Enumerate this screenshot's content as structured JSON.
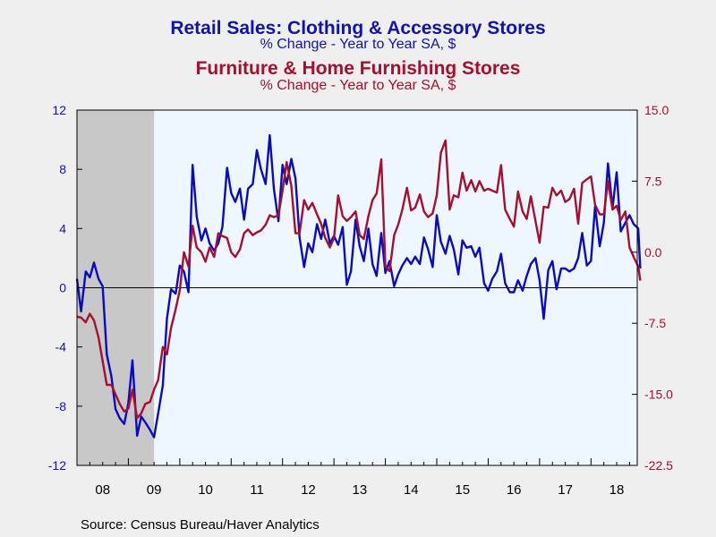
{
  "chart_data": {
    "type": "line",
    "title": "Retail Sales: Clothing & Accessory Stores",
    "subtitle": "% Change - Year to Year    SA, $",
    "title2": "Furniture & Home Furnishing Stores",
    "subtitle2": "% Change - Year to Year    SA, $",
    "source": "Source:  Census Bureau/Haver Analytics",
    "x_range": [
      2008.0,
      2018.9
    ],
    "x_tick_labels": [
      "08",
      "09",
      "10",
      "11",
      "12",
      "13",
      "14",
      "15",
      "16",
      "17",
      "18"
    ],
    "recession_shading": [
      2008.0,
      2009.5
    ],
    "left_axis": {
      "range": [
        -12,
        12
      ],
      "ticks": [
        "12",
        "8",
        "4",
        "0",
        "-4",
        "-8",
        "-12"
      ],
      "color": "#1212b4"
    },
    "right_axis": {
      "range": [
        -22.5,
        15.0
      ],
      "ticks": [
        "15.0",
        "7.5",
        "0.0",
        "-7.5",
        "-15.0",
        "-22.5"
      ],
      "color": "#a6102e"
    },
    "grid": false,
    "series": [
      {
        "name": "Retail Sales: Clothing & Accessory Stores",
        "axis": "left",
        "color": "#0a0ac0",
        "points": [
          [
            2008.0,
            0.6
          ],
          [
            2008.08,
            -1.6
          ],
          [
            2008.17,
            1.1
          ],
          [
            2008.25,
            0.7
          ],
          [
            2008.33,
            1.7
          ],
          [
            2008.42,
            0.6
          ],
          [
            2008.5,
            0.1
          ],
          [
            2008.58,
            -4.5
          ],
          [
            2008.67,
            -6.0
          ],
          [
            2008.75,
            -8.2
          ],
          [
            2008.83,
            -8.8
          ],
          [
            2008.92,
            -9.2
          ],
          [
            2009.0,
            -7.8
          ],
          [
            2009.08,
            -4.9
          ],
          [
            2009.17,
            -10.0
          ],
          [
            2009.25,
            -8.7
          ],
          [
            2009.33,
            -9.1
          ],
          [
            2009.42,
            -9.6
          ],
          [
            2009.5,
            -10.1
          ],
          [
            2009.58,
            -8.5
          ],
          [
            2009.67,
            -6.6
          ],
          [
            2009.75,
            -2.1
          ],
          [
            2009.83,
            -0.1
          ],
          [
            2009.92,
            -0.4
          ],
          [
            2010.0,
            1.5
          ],
          [
            2010.08,
            1.1
          ],
          [
            2010.17,
            -0.3
          ],
          [
            2010.25,
            8.3
          ],
          [
            2010.33,
            4.8
          ],
          [
            2010.42,
            3.2
          ],
          [
            2010.5,
            4.0
          ],
          [
            2010.58,
            3.0
          ],
          [
            2010.67,
            2.5
          ],
          [
            2010.75,
            3.0
          ],
          [
            2010.83,
            4.1
          ],
          [
            2010.92,
            8.1
          ],
          [
            2011.0,
            6.4
          ],
          [
            2011.08,
            5.8
          ],
          [
            2011.17,
            6.7
          ],
          [
            2011.25,
            4.6
          ],
          [
            2011.33,
            6.7
          ],
          [
            2011.42,
            7.0
          ],
          [
            2011.5,
            9.3
          ],
          [
            2011.58,
            8.0
          ],
          [
            2011.67,
            7.0
          ],
          [
            2011.75,
            10.3
          ],
          [
            2011.83,
            6.7
          ],
          [
            2011.92,
            4.5
          ],
          [
            2012.0,
            8.3
          ],
          [
            2012.08,
            7.0
          ],
          [
            2012.17,
            8.7
          ],
          [
            2012.25,
            7.4
          ],
          [
            2012.33,
            3.4
          ],
          [
            2012.42,
            1.4
          ],
          [
            2012.5,
            3.0
          ],
          [
            2012.58,
            2.4
          ],
          [
            2012.67,
            4.3
          ],
          [
            2012.75,
            3.3
          ],
          [
            2012.83,
            4.6
          ],
          [
            2012.92,
            3.0
          ],
          [
            2013.0,
            3.5
          ],
          [
            2013.08,
            2.9
          ],
          [
            2013.17,
            4.1
          ],
          [
            2013.25,
            0.2
          ],
          [
            2013.33,
            1.1
          ],
          [
            2013.42,
            4.6
          ],
          [
            2013.5,
            2.8
          ],
          [
            2013.58,
            1.8
          ],
          [
            2013.67,
            4.0
          ],
          [
            2013.75,
            1.6
          ],
          [
            2013.83,
            0.8
          ],
          [
            2013.92,
            3.7
          ],
          [
            2014.0,
            1.0
          ],
          [
            2014.08,
            1.8
          ],
          [
            2014.17,
            0.1
          ],
          [
            2014.25,
            0.9
          ],
          [
            2014.33,
            1.5
          ],
          [
            2014.42,
            2.0
          ],
          [
            2014.5,
            1.6
          ],
          [
            2014.58,
            2.1
          ],
          [
            2014.67,
            1.6
          ],
          [
            2014.75,
            3.4
          ],
          [
            2014.83,
            2.6
          ],
          [
            2014.92,
            1.4
          ],
          [
            2015.0,
            4.9
          ],
          [
            2015.08,
            3.1
          ],
          [
            2015.17,
            2.3
          ],
          [
            2015.25,
            3.5
          ],
          [
            2015.33,
            2.6
          ],
          [
            2015.42,
            0.9
          ],
          [
            2015.5,
            3.2
          ],
          [
            2015.58,
            2.7
          ],
          [
            2015.67,
            2.8
          ],
          [
            2015.75,
            2.1
          ],
          [
            2015.83,
            2.7
          ],
          [
            2015.92,
            0.3
          ],
          [
            2016.0,
            -0.2
          ],
          [
            2016.08,
            0.6
          ],
          [
            2016.17,
            1.1
          ],
          [
            2016.25,
            2.3
          ],
          [
            2016.33,
            0.3
          ],
          [
            2016.42,
            -0.3
          ],
          [
            2016.5,
            -0.3
          ],
          [
            2016.58,
            0.5
          ],
          [
            2016.67,
            -0.2
          ],
          [
            2016.75,
            0.8
          ],
          [
            2016.83,
            1.6
          ],
          [
            2016.92,
            2.0
          ],
          [
            2017.0,
            0.5
          ],
          [
            2017.08,
            -2.1
          ],
          [
            2017.17,
            1.2
          ],
          [
            2017.25,
            1.8
          ],
          [
            2017.33,
            -0.1
          ],
          [
            2017.42,
            1.3
          ],
          [
            2017.5,
            1.3
          ],
          [
            2017.58,
            1.1
          ],
          [
            2017.67,
            1.3
          ],
          [
            2017.75,
            2.0
          ],
          [
            2017.83,
            3.7
          ],
          [
            2017.92,
            1.5
          ],
          [
            2018.0,
            1.8
          ],
          [
            2018.08,
            5.5
          ],
          [
            2018.17,
            2.8
          ],
          [
            2018.25,
            4.4
          ],
          [
            2018.33,
            8.4
          ],
          [
            2018.42,
            5.4
          ],
          [
            2018.5,
            7.8
          ],
          [
            2018.58,
            3.8
          ],
          [
            2018.67,
            4.4
          ],
          [
            2018.75,
            4.9
          ],
          [
            2018.83,
            4.3
          ],
          [
            2018.92,
            4.0
          ],
          [
            2018.96,
            1.3
          ]
        ]
      },
      {
        "name": "Furniture & Home Furnishing Stores",
        "axis": "right",
        "color": "#a6102e",
        "points": [
          [
            2008.0,
            -6.8
          ],
          [
            2008.08,
            -6.9
          ],
          [
            2008.17,
            -7.4
          ],
          [
            2008.25,
            -6.5
          ],
          [
            2008.33,
            -7.2
          ],
          [
            2008.42,
            -9.0
          ],
          [
            2008.5,
            -11.5
          ],
          [
            2008.58,
            -14.0
          ],
          [
            2008.67,
            -14.0
          ],
          [
            2008.75,
            -15.0
          ],
          [
            2008.83,
            -16.0
          ],
          [
            2008.92,
            -16.8
          ],
          [
            2009.0,
            -16.5
          ],
          [
            2009.08,
            -14.5
          ],
          [
            2009.17,
            -17.5
          ],
          [
            2009.25,
            -17.0
          ],
          [
            2009.33,
            -16.0
          ],
          [
            2009.42,
            -15.8
          ],
          [
            2009.5,
            -14.5
          ],
          [
            2009.58,
            -13.5
          ],
          [
            2009.67,
            -10.0
          ],
          [
            2009.75,
            -10.8
          ],
          [
            2009.83,
            -8.0
          ],
          [
            2009.92,
            -6.0
          ],
          [
            2010.0,
            -4.0
          ],
          [
            2010.08,
            0.0
          ],
          [
            2010.17,
            -1.5
          ],
          [
            2010.25,
            2.8
          ],
          [
            2010.33,
            0.5
          ],
          [
            2010.42,
            0.0
          ],
          [
            2010.5,
            -1.0
          ],
          [
            2010.58,
            0.5
          ],
          [
            2010.67,
            -0.5
          ],
          [
            2010.75,
            2.0
          ],
          [
            2010.83,
            1.7
          ],
          [
            2010.92,
            1.5
          ],
          [
            2011.0,
            0.0
          ],
          [
            2011.08,
            -0.5
          ],
          [
            2011.17,
            0.3
          ],
          [
            2011.25,
            2.0
          ],
          [
            2011.33,
            2.4
          ],
          [
            2011.42,
            1.8
          ],
          [
            2011.5,
            2.1
          ],
          [
            2011.58,
            2.3
          ],
          [
            2011.67,
            2.9
          ],
          [
            2011.75,
            3.9
          ],
          [
            2011.83,
            3.7
          ],
          [
            2011.92,
            3.9
          ],
          [
            2012.0,
            6.5
          ],
          [
            2012.08,
            9.5
          ],
          [
            2012.17,
            7.0
          ],
          [
            2012.25,
            2.0
          ],
          [
            2012.33,
            2.0
          ],
          [
            2012.42,
            5.5
          ],
          [
            2012.5,
            4.5
          ],
          [
            2012.58,
            5.2
          ],
          [
            2012.67,
            4.0
          ],
          [
            2012.75,
            3.0
          ],
          [
            2012.83,
            1.5
          ],
          [
            2012.92,
            0.5
          ],
          [
            2013.0,
            1.5
          ],
          [
            2013.08,
            6.0
          ],
          [
            2013.17,
            3.8
          ],
          [
            2013.25,
            3.3
          ],
          [
            2013.33,
            3.7
          ],
          [
            2013.42,
            4.3
          ],
          [
            2013.5,
            1.8
          ],
          [
            2013.58,
            1.4
          ],
          [
            2013.67,
            3.8
          ],
          [
            2013.75,
            5.5
          ],
          [
            2013.83,
            6.2
          ],
          [
            2013.92,
            9.8
          ],
          [
            2014.0,
            -1.5
          ],
          [
            2014.08,
            -2.0
          ],
          [
            2014.17,
            1.8
          ],
          [
            2014.25,
            2.9
          ],
          [
            2014.33,
            4.5
          ],
          [
            2014.42,
            6.8
          ],
          [
            2014.5,
            4.4
          ],
          [
            2014.58,
            4.7
          ],
          [
            2014.67,
            6.1
          ],
          [
            2014.75,
            4.3
          ],
          [
            2014.83,
            3.7
          ],
          [
            2014.92,
            4.1
          ],
          [
            2015.0,
            6.0
          ],
          [
            2015.08,
            10.5
          ],
          [
            2015.17,
            11.8
          ],
          [
            2015.25,
            4.5
          ],
          [
            2015.33,
            6.0
          ],
          [
            2015.42,
            5.8
          ],
          [
            2015.5,
            8.4
          ],
          [
            2015.58,
            6.5
          ],
          [
            2015.67,
            7.6
          ],
          [
            2015.75,
            6.4
          ],
          [
            2015.83,
            7.5
          ],
          [
            2015.92,
            6.5
          ],
          [
            2016.0,
            6.7
          ],
          [
            2016.08,
            6.5
          ],
          [
            2016.17,
            6.3
          ],
          [
            2016.25,
            9.2
          ],
          [
            2016.33,
            4.5
          ],
          [
            2016.42,
            3.5
          ],
          [
            2016.5,
            2.7
          ],
          [
            2016.58,
            6.4
          ],
          [
            2016.67,
            4.3
          ],
          [
            2016.75,
            3.5
          ],
          [
            2016.83,
            5.9
          ],
          [
            2016.92,
            3.3
          ],
          [
            2017.0,
            1.0
          ],
          [
            2017.08,
            4.8
          ],
          [
            2017.17,
            4.7
          ],
          [
            2017.25,
            6.8
          ],
          [
            2017.33,
            6.0
          ],
          [
            2017.42,
            6.5
          ],
          [
            2017.5,
            5.3
          ],
          [
            2017.58,
            5.6
          ],
          [
            2017.67,
            6.7
          ],
          [
            2017.75,
            3.0
          ],
          [
            2017.83,
            7.3
          ],
          [
            2017.92,
            7.7
          ],
          [
            2018.0,
            8.0
          ],
          [
            2018.08,
            5.0
          ],
          [
            2018.17,
            4.0
          ],
          [
            2018.25,
            4.0
          ],
          [
            2018.33,
            7.5
          ],
          [
            2018.42,
            4.5
          ],
          [
            2018.5,
            4.9
          ],
          [
            2018.58,
            3.4
          ],
          [
            2018.67,
            4.3
          ],
          [
            2018.75,
            0.5
          ],
          [
            2018.83,
            -0.5
          ],
          [
            2018.92,
            -1.5
          ],
          [
            2018.96,
            -3.0
          ]
        ]
      }
    ]
  }
}
